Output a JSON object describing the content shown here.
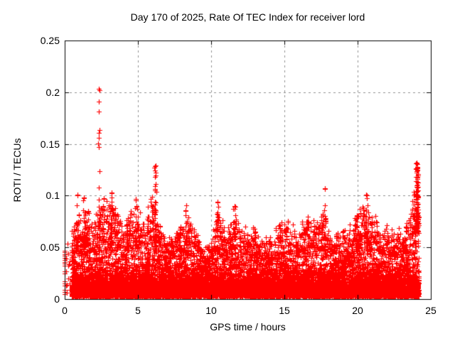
{
  "chart_data": {
    "type": "scatter",
    "title": "Day 170 of 2025, Rate Of TEC Index for receiver lord",
    "xlabel": "GPS time / hours",
    "ylabel": "ROTI / TECUs",
    "xlim": [
      0,
      25
    ],
    "ylim": [
      0,
      0.25
    ],
    "xticks": [
      0,
      5,
      10,
      15,
      20,
      25
    ],
    "yticks": [
      0,
      0.05,
      0.1,
      0.15,
      0.2,
      0.25
    ],
    "xtick_labels": [
      "0",
      "5",
      "10",
      "15",
      "20",
      "25"
    ],
    "ytick_labels": [
      "0",
      "0.05",
      "0.1",
      "0.15",
      "0.2",
      "0.25"
    ],
    "grid": {
      "visible": true,
      "style": "dashed",
      "color": "#909090"
    },
    "border_color": "#000000",
    "marker": {
      "shape": "plus",
      "color": "#ff0000",
      "size": 7
    },
    "series_name": "ROTI",
    "time_range": [
      0.48,
      24.2
    ],
    "max_point": {
      "t": 2.35,
      "value": 0.203
    },
    "axis_column": {
      "t": 0.0,
      "values": [
        0.005,
        0.007,
        0.009,
        0.013,
        0.015,
        0.017,
        0.025,
        0.027,
        0.032,
        0.034,
        0.036,
        0.038,
        0.04,
        0.042,
        0.043,
        0.045,
        0.047
      ]
    },
    "envelope": [
      [
        0.5,
        0.055
      ],
      [
        1.0,
        0.075
      ],
      [
        1.5,
        0.07
      ],
      [
        2.0,
        0.065
      ],
      [
        2.5,
        0.08
      ],
      [
        3.0,
        0.085
      ],
      [
        3.5,
        0.075
      ],
      [
        4.0,
        0.06
      ],
      [
        4.5,
        0.075
      ],
      [
        5.0,
        0.08
      ],
      [
        5.5,
        0.065
      ],
      [
        6.0,
        0.095
      ],
      [
        6.5,
        0.065
      ],
      [
        7.0,
        0.05
      ],
      [
        7.5,
        0.055
      ],
      [
        8.0,
        0.065
      ],
      [
        8.5,
        0.07
      ],
      [
        9.0,
        0.055
      ],
      [
        9.5,
        0.042
      ],
      [
        10.0,
        0.048
      ],
      [
        10.5,
        0.075
      ],
      [
        11.0,
        0.06
      ],
      [
        11.5,
        0.078
      ],
      [
        12.0,
        0.06
      ],
      [
        12.5,
        0.055
      ],
      [
        13.0,
        0.06
      ],
      [
        13.5,
        0.05
      ],
      [
        14.0,
        0.052
      ],
      [
        14.5,
        0.06
      ],
      [
        15.0,
        0.065
      ],
      [
        15.5,
        0.062
      ],
      [
        16.0,
        0.055
      ],
      [
        16.5,
        0.07
      ],
      [
        17.0,
        0.062
      ],
      [
        17.5,
        0.075
      ],
      [
        18.0,
        0.06
      ],
      [
        18.5,
        0.052
      ],
      [
        19.0,
        0.06
      ],
      [
        19.5,
        0.06
      ],
      [
        20.0,
        0.072
      ],
      [
        20.5,
        0.08
      ],
      [
        21.0,
        0.07
      ],
      [
        21.5,
        0.058
      ],
      [
        22.0,
        0.06
      ],
      [
        22.5,
        0.06
      ],
      [
        23.0,
        0.058
      ],
      [
        23.5,
        0.068
      ],
      [
        24.0,
        0.1
      ],
      [
        24.2,
        0.09
      ]
    ],
    "spikes": [
      {
        "t": 0.85,
        "peak": 0.101,
        "n": 16,
        "w": 0.12
      },
      {
        "t": 1.3,
        "peak": 0.098,
        "n": 14,
        "w": 0.1
      },
      {
        "t": 1.6,
        "peak": 0.085,
        "n": 10,
        "w": 0.1
      },
      {
        "t": 2.35,
        "peak": 0.203,
        "n": 26,
        "w": 0.1
      },
      {
        "t": 2.6,
        "peak": 0.09,
        "n": 10,
        "w": 0.1
      },
      {
        "t": 3.2,
        "peak": 0.103,
        "n": 16,
        "w": 0.14
      },
      {
        "t": 3.6,
        "peak": 0.082,
        "n": 10,
        "w": 0.1
      },
      {
        "t": 4.85,
        "peak": 0.097,
        "n": 14,
        "w": 0.12
      },
      {
        "t": 6.2,
        "peak": 0.129,
        "n": 34,
        "w": 0.12
      },
      {
        "t": 7.9,
        "peak": 0.07,
        "n": 8,
        "w": 0.1
      },
      {
        "t": 8.3,
        "peak": 0.091,
        "n": 18,
        "w": 0.14
      },
      {
        "t": 10.45,
        "peak": 0.094,
        "n": 16,
        "w": 0.16
      },
      {
        "t": 11.6,
        "peak": 0.09,
        "n": 16,
        "w": 0.14
      },
      {
        "t": 13.0,
        "peak": 0.065,
        "n": 8,
        "w": 0.1
      },
      {
        "t": 14.7,
        "peak": 0.071,
        "n": 10,
        "w": 0.12
      },
      {
        "t": 16.6,
        "peak": 0.08,
        "n": 12,
        "w": 0.14
      },
      {
        "t": 17.75,
        "peak": 0.107,
        "n": 18,
        "w": 0.12
      },
      {
        "t": 19.95,
        "peak": 0.081,
        "n": 10,
        "w": 0.1
      },
      {
        "t": 20.6,
        "peak": 0.101,
        "n": 20,
        "w": 0.14
      },
      {
        "t": 23.3,
        "peak": 0.07,
        "n": 8,
        "w": 0.1
      },
      {
        "t": 24.05,
        "peak": 0.132,
        "n": 80,
        "w": 0.18
      }
    ],
    "baseline": {
      "solid_top": 0.022,
      "dense_top": 0.035
    }
  }
}
